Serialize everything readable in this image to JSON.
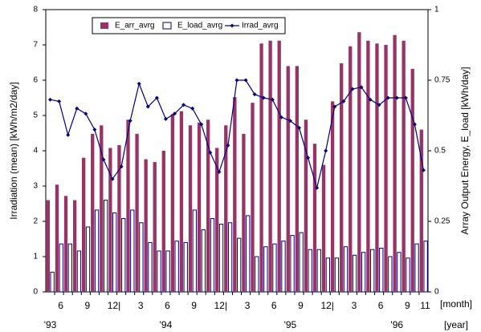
{
  "chart_data": {
    "type": "bar-line",
    "categories": [
      null,
      "6",
      null,
      null,
      "9",
      null,
      null,
      "12|",
      null,
      null,
      "3",
      null,
      null,
      "6",
      null,
      null,
      "9",
      null,
      null,
      "12|",
      null,
      null,
      "3",
      null,
      null,
      "6",
      null,
      null,
      "9",
      null,
      null,
      "12|",
      null,
      null,
      "3",
      null,
      null,
      "6",
      null,
      null,
      "9",
      null,
      "11"
    ],
    "x_unit": "[month]",
    "year_labels": [
      "'93",
      "'94",
      "'95",
      "'96"
    ],
    "year_unit": "[year]",
    "y_label": "Irradiation (mean) [kWh/m2/day]",
    "y2_label": "Array Output Energy, E_load  [kWh/day]",
    "ylim": [
      0,
      8
    ],
    "yticks": [
      0,
      1,
      2,
      3,
      4,
      5,
      6,
      7,
      8
    ],
    "y2lim": [
      0,
      1
    ],
    "y2ticks": [
      0,
      0.25,
      0.5,
      0.75,
      1
    ],
    "series": [
      {
        "name": "E_arr_avrg",
        "color": "#993366",
        "axis": "y2",
        "values": [
          0.325,
          0.38,
          0.34,
          0.325,
          0.475,
          0.56,
          0.59,
          0.51,
          0.52,
          0.61,
          0.56,
          0.47,
          0.46,
          0.5,
          0.63,
          0.64,
          0.59,
          0.6,
          0.61,
          0.51,
          0.59,
          0.69,
          0.56,
          0.67,
          0.88,
          0.89,
          0.89,
          0.8,
          0.8,
          0.61,
          0.525,
          0.45,
          0.675,
          0.81,
          0.87,
          0.92,
          0.89,
          0.88,
          0.875,
          0.91,
          0.89,
          0.79,
          0.575
        ]
      },
      {
        "name": "E_load_avrg",
        "color": "#000080",
        "axis": "y2",
        "values": [
          0.07,
          0.17,
          0.17,
          0.145,
          0.23,
          0.29,
          0.325,
          0.28,
          0.26,
          0.29,
          0.245,
          0.175,
          0.145,
          0.145,
          0.18,
          0.175,
          0.29,
          0.22,
          0.26,
          0.24,
          0.245,
          0.19,
          0.27,
          0.125,
          0.16,
          0.17,
          0.18,
          0.2,
          0.21,
          0.15,
          0.15,
          0.12,
          0.12,
          0.16,
          0.13,
          0.14,
          0.15,
          0.155,
          0.125,
          0.14,
          0.12,
          0.17,
          0.18
        ]
      },
      {
        "name": "Irrad_avrg",
        "color": "#000080",
        "values": [
          5.45,
          5.4,
          4.45,
          5.2,
          5.05,
          4.6,
          3.75,
          3.2,
          3.55,
          4.85,
          5.9,
          5.25,
          5.5,
          4.9,
          5.05,
          5.3,
          5.2,
          4.75,
          3.95,
          3.4,
          4.15,
          6.0,
          6.0,
          5.6,
          5.5,
          5.45,
          4.95,
          4.85,
          4.65,
          3.8,
          2.95,
          4.0,
          5.25,
          5.4,
          5.75,
          5.8,
          5.45,
          5.3,
          5.5,
          5.5,
          5.5,
          4.75,
          3.45
        ]
      }
    ]
  }
}
